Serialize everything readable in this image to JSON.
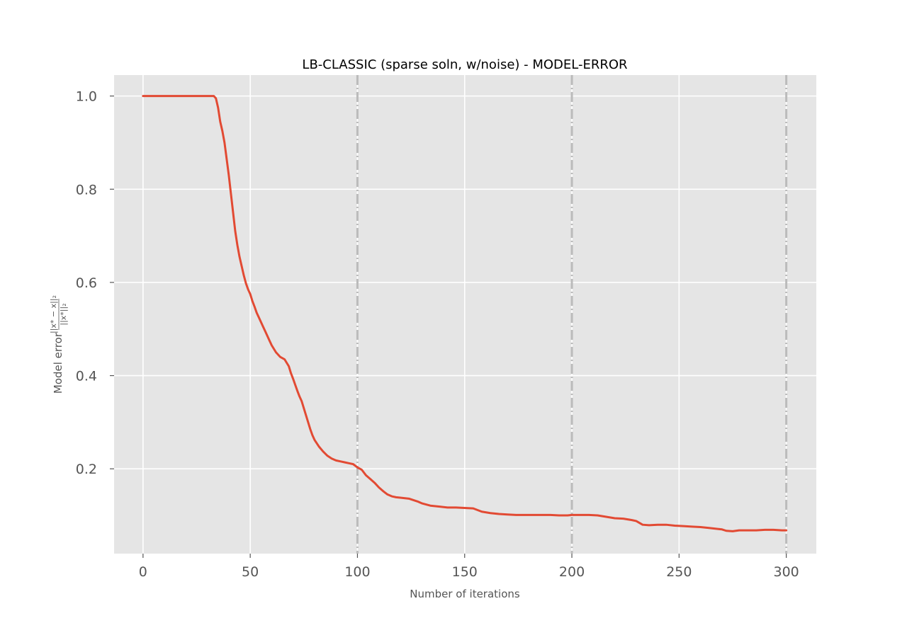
{
  "chart_data": {
    "type": "line",
    "title": "LB-CLASSIC (sparse soln, w/noise) - MODEL-ERROR",
    "xlabel": "Number of iterations",
    "ylabel_text": "Model error",
    "ylabel_fraction_numerator": "||x* − x||₂",
    "ylabel_fraction_denominator": "||x*||₂",
    "xlim": [
      -13.5,
      314
    ],
    "ylim": [
      0.018,
      1.045
    ],
    "xticks": [
      0,
      50,
      100,
      150,
      200,
      250,
      300
    ],
    "yticks": [
      0.2,
      0.4,
      0.6,
      0.8,
      1.0
    ],
    "xtick_labels": [
      "0",
      "50",
      "100",
      "150",
      "200",
      "250",
      "300"
    ],
    "ytick_labels": [
      "0.2",
      "0.4",
      "0.6",
      "0.8",
      "1.0"
    ],
    "grid": true,
    "vertical_markers": [
      100,
      200,
      300
    ],
    "colors": {
      "line": "#E24A33",
      "plot_background": "#E5E5E5",
      "grid": "#FFFFFF",
      "markers": "#BBBBBB"
    },
    "series": [
      {
        "x": [
          0,
          5,
          10,
          15,
          20,
          25,
          30,
          33,
          34,
          35,
          36,
          37,
          38,
          39,
          40,
          41,
          42,
          43,
          44,
          45,
          46,
          47,
          48,
          49,
          50,
          51,
          52,
          53,
          54,
          55,
          56,
          57,
          58,
          59,
          60,
          62,
          64,
          66,
          68,
          69,
          70,
          71,
          72,
          73,
          74,
          75,
          76,
          77,
          78,
          79,
          80,
          82,
          84,
          86,
          88,
          90,
          92,
          94,
          96,
          98,
          100,
          102,
          104,
          106,
          108,
          110,
          112,
          114,
          116,
          118,
          120,
          124,
          128,
          130,
          134,
          138,
          142,
          146,
          150,
          154,
          158,
          162,
          166,
          170,
          174,
          178,
          182,
          186,
          190,
          194,
          198,
          200,
          204,
          208,
          212,
          216,
          220,
          224,
          228,
          230,
          233,
          236,
          240,
          244,
          248,
          252,
          256,
          260,
          264,
          268,
          270,
          272,
          275,
          278,
          282,
          286,
          290,
          294,
          298,
          300
        ],
        "y": [
          1.0,
          1.0,
          1.0,
          1.0,
          1.0,
          1.0,
          1.0,
          1.0,
          0.995,
          0.975,
          0.945,
          0.925,
          0.9,
          0.865,
          0.83,
          0.79,
          0.75,
          0.71,
          0.68,
          0.655,
          0.635,
          0.615,
          0.598,
          0.585,
          0.575,
          0.56,
          0.548,
          0.535,
          0.525,
          0.515,
          0.505,
          0.495,
          0.485,
          0.475,
          0.465,
          0.45,
          0.44,
          0.435,
          0.42,
          0.405,
          0.393,
          0.38,
          0.367,
          0.355,
          0.345,
          0.33,
          0.315,
          0.3,
          0.285,
          0.272,
          0.262,
          0.248,
          0.237,
          0.228,
          0.222,
          0.218,
          0.216,
          0.214,
          0.212,
          0.21,
          0.203,
          0.198,
          0.186,
          0.178,
          0.17,
          0.16,
          0.152,
          0.145,
          0.141,
          0.139,
          0.138,
          0.136,
          0.13,
          0.126,
          0.121,
          0.119,
          0.117,
          0.117,
          0.116,
          0.115,
          0.108,
          0.105,
          0.103,
          0.102,
          0.101,
          0.101,
          0.101,
          0.101,
          0.101,
          0.1,
          0.1,
          0.101,
          0.101,
          0.101,
          0.1,
          0.097,
          0.094,
          0.093,
          0.09,
          0.088,
          0.08,
          0.079,
          0.08,
          0.08,
          0.078,
          0.077,
          0.076,
          0.075,
          0.073,
          0.071,
          0.07,
          0.067,
          0.066,
          0.068,
          0.068,
          0.068,
          0.069,
          0.069,
          0.068,
          0.068
        ]
      }
    ]
  }
}
